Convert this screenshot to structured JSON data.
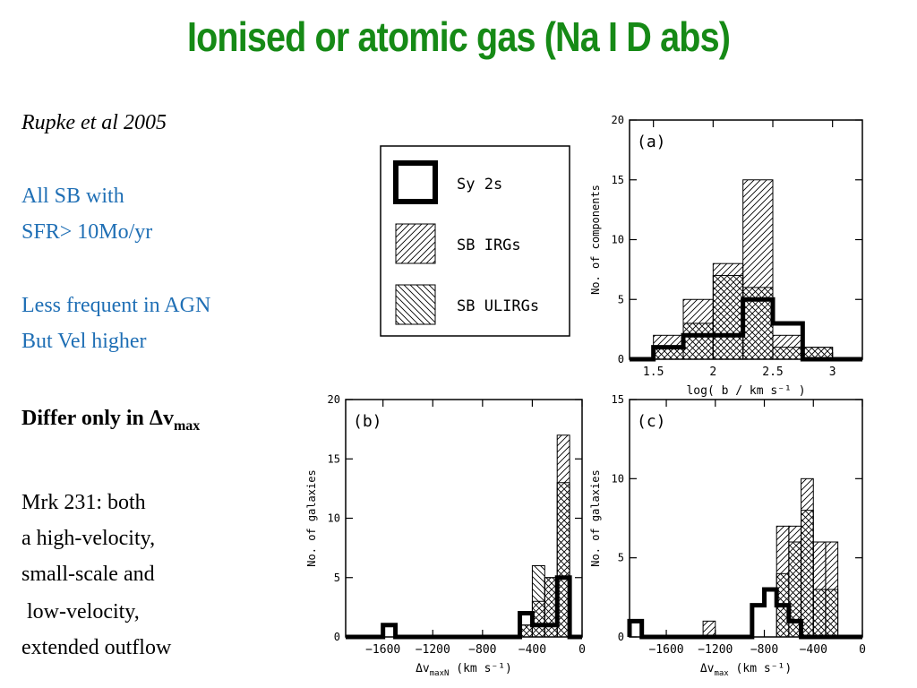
{
  "slide": {
    "title": "Ionised or atomic gas (Na I D abs)",
    "citation": "Rupke et al 2005",
    "sample_line1": "All SB with",
    "sample_line2": "SFR> 10Mo/yr",
    "agn_line1": "Less frequent in AGN",
    "agn_line2": "But Vel higher",
    "differ_prefix": "Differ only in ",
    "differ_delta": "Δ",
    "differ_v": "v",
    "differ_sub": "max",
    "mrk_lines": [
      "Mrk 231: both",
      "a high-velocity,",
      "small-scale and",
      " low-velocity,",
      "extended outflow"
    ]
  },
  "legend": {
    "items": [
      {
        "label": "Sy 2s",
        "pattern": "solid-outline"
      },
      {
        "label": "SB IRGs",
        "pattern": "hatch-right"
      },
      {
        "label": "SB ULIRGs",
        "pattern": "hatch-left"
      }
    ]
  },
  "chart_data": [
    {
      "type": "bar",
      "panel": "(a)",
      "ylabel": "No. of components",
      "xlabel": "log( b / km s⁻¹ )",
      "xlim": [
        1.3,
        3.25
      ],
      "ylim": [
        0,
        20
      ],
      "xticks": [
        1.5,
        2,
        2.5,
        3
      ],
      "xtick_labels": [
        "1.5",
        "2",
        "2.5",
        "3"
      ],
      "yticks": [
        0,
        5,
        10,
        15,
        20
      ],
      "bin_edges": [
        1.3,
        1.5,
        1.75,
        2.0,
        2.25,
        2.5,
        2.75,
        3.0,
        3.25
      ],
      "series": [
        {
          "name": "SB IRGs",
          "pattern": "hatch-right",
          "values": [
            0,
            2,
            5,
            8,
            15,
            2,
            1,
            0
          ]
        },
        {
          "name": "SB ULIRGs",
          "pattern": "hatch-left",
          "values": [
            0,
            1,
            3,
            7,
            6,
            1,
            1,
            0
          ]
        },
        {
          "name": "Sy 2s",
          "pattern": "solid-outline",
          "values": [
            0,
            1,
            2,
            2,
            5,
            3,
            0,
            0
          ]
        }
      ]
    },
    {
      "type": "bar",
      "panel": "(b)",
      "ylabel": "No. of galaxies",
      "xlabel": "Δv",
      "xlabel_sub": "maxN",
      "xlabel_unit": " (km s⁻¹)",
      "xlim": [
        -1900,
        0
      ],
      "ylim": [
        0,
        20
      ],
      "xticks": [
        -1600,
        -1200,
        -800,
        -400,
        0
      ],
      "xtick_labels": [
        "−1600",
        "−1200",
        "−800",
        "−400",
        "0"
      ],
      "yticks": [
        0,
        5,
        10,
        15,
        20
      ],
      "bin_edges": [
        -1900,
        -1800,
        -1700,
        -1600,
        -1500,
        -1400,
        -1300,
        -1200,
        -1100,
        -1000,
        -900,
        -800,
        -700,
        -600,
        -500,
        -400,
        -300,
        -200,
        -100,
        0
      ],
      "series": [
        {
          "name": "SB IRGs",
          "pattern": "hatch-right",
          "values": [
            0,
            0,
            0,
            0,
            0,
            0,
            0,
            0,
            0,
            0,
            0,
            0,
            0,
            0,
            1,
            3,
            5,
            17,
            0
          ]
        },
        {
          "name": "SB ULIRGs",
          "pattern": "hatch-left",
          "values": [
            0,
            0,
            0,
            0,
            0,
            0,
            0,
            0,
            0,
            0,
            0,
            0,
            0,
            0,
            1,
            6,
            5,
            13,
            0
          ]
        },
        {
          "name": "Sy 2s",
          "pattern": "solid-outline",
          "values": [
            0,
            0,
            0,
            1,
            0,
            0,
            0,
            0,
            0,
            0,
            0,
            0,
            0,
            0,
            2,
            1,
            1,
            5,
            0
          ]
        }
      ]
    },
    {
      "type": "bar",
      "panel": "(c)",
      "ylabel": "No. of galaxies",
      "xlabel": "Δv",
      "xlabel_sub": "max",
      "xlabel_unit": " (km s⁻¹)",
      "xlim": [
        -1900,
        0
      ],
      "ylim": [
        0,
        15
      ],
      "xticks": [
        -1600,
        -1200,
        -800,
        -400,
        0
      ],
      "xtick_labels": [
        "−1600",
        "−1200",
        "−800",
        "−400",
        "0"
      ],
      "yticks": [
        0,
        5,
        10,
        15
      ],
      "bin_edges": [
        -1900,
        -1800,
        -1700,
        -1600,
        -1500,
        -1400,
        -1300,
        -1200,
        -1100,
        -1000,
        -900,
        -800,
        -700,
        -600,
        -500,
        -400,
        -300,
        -200,
        -100,
        0
      ],
      "series": [
        {
          "name": "SB IRGs",
          "pattern": "hatch-right",
          "values": [
            0,
            0,
            0,
            0,
            0,
            0,
            1,
            0,
            0,
            0,
            0,
            0,
            7,
            7,
            10,
            6,
            6,
            0,
            0
          ]
        },
        {
          "name": "SB ULIRGs",
          "pattern": "hatch-left",
          "values": [
            0,
            0,
            0,
            0,
            0,
            0,
            0,
            0,
            0,
            0,
            0,
            0,
            4,
            6,
            8,
            3,
            3,
            0,
            0
          ]
        },
        {
          "name": "Sy 2s",
          "pattern": "solid-outline",
          "values": [
            1,
            0,
            0,
            0,
            0,
            0,
            0,
            0,
            0,
            0,
            2,
            3,
            2,
            1,
            0,
            0,
            0,
            0,
            0
          ]
        }
      ]
    }
  ]
}
